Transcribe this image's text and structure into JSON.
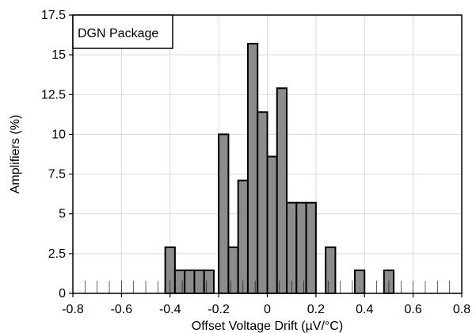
{
  "chart_data": {
    "type": "bar",
    "xlabel": "Offset Voltage Drift (µV/°C)",
    "ylabel": "Amplifiers (%)",
    "xlim": [
      -0.8,
      0.8
    ],
    "ylim": [
      0,
      17.5
    ],
    "xticks": [
      -0.8,
      -0.6,
      -0.4,
      -0.2,
      0,
      0.2,
      0.4,
      0.6,
      0.8
    ],
    "xtick_labels": [
      "-0.8",
      "-0.6",
      "-0.4",
      "-0.2",
      "0",
      "0.2",
      "0.4",
      "0.6",
      "0.8"
    ],
    "yticks": [
      0,
      2.5,
      5,
      7.5,
      10,
      12.5,
      15,
      17.5
    ],
    "ytick_labels": [
      "0",
      "2.5",
      "5",
      "7.5",
      "10",
      "12.5",
      "15",
      "17.5"
    ],
    "grid": true,
    "legend_text": "DGN Package",
    "legend_position": "top-left",
    "bar_color": "#8c8c8c",
    "bar_width": 0.04,
    "bars": [
      {
        "x": -0.4,
        "value": 2.9
      },
      {
        "x": -0.36,
        "value": 1.45
      },
      {
        "x": -0.32,
        "value": 1.45
      },
      {
        "x": -0.28,
        "value": 1.45
      },
      {
        "x": -0.24,
        "value": 1.45
      },
      {
        "x": -0.18,
        "value": 10.0
      },
      {
        "x": -0.14,
        "value": 2.9
      },
      {
        "x": -0.1,
        "value": 7.1
      },
      {
        "x": -0.06,
        "value": 15.7
      },
      {
        "x": -0.02,
        "value": 11.4
      },
      {
        "x": 0.02,
        "value": 8.6
      },
      {
        "x": 0.06,
        "value": 12.9
      },
      {
        "x": 0.1,
        "value": 5.7
      },
      {
        "x": 0.14,
        "value": 5.7
      },
      {
        "x": 0.18,
        "value": 5.7
      },
      {
        "x": 0.26,
        "value": 2.9
      },
      {
        "x": 0.38,
        "value": 1.45
      },
      {
        "x": 0.5,
        "value": 1.45
      }
    ]
  }
}
